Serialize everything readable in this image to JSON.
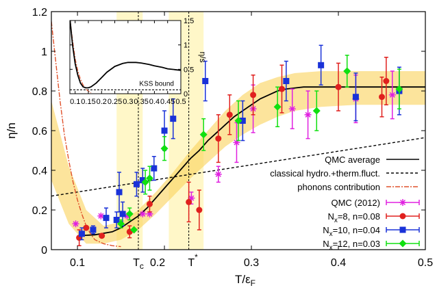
{
  "chart_data": {
    "type": "scatter",
    "title": "",
    "xlabel_main": "T/ε",
    "xlabel_sub": "F",
    "ylabel": "η/n",
    "xlim": [
      0.07,
      0.5
    ],
    "ylim": [
      0,
      1.2
    ],
    "xticks": [
      0.1,
      0.2,
      0.3,
      0.4,
      0.5
    ],
    "yticks": [
      0,
      0.2,
      0.4,
      0.6,
      0.8,
      1,
      1.2
    ],
    "yticklabels": [
      "0",
      "0.2",
      "0.4",
      "0.6",
      "0.8",
      "1",
      "1.2"
    ],
    "xtick_labels": [
      "0.1",
      "0.2",
      "0.3",
      "0.4",
      "0.5"
    ],
    "vertical_markers": [
      {
        "x": 0.17,
        "main": "T",
        "sub": "c",
        "sup": ""
      },
      {
        "x": 0.228,
        "main": "T",
        "sub": "",
        "sup": "*"
      }
    ],
    "shaded_regions": [
      {
        "x0": 0.145,
        "x1": 0.175
      },
      {
        "x0": 0.205,
        "x1": 0.245
      }
    ],
    "band": {
      "x": [
        0.07,
        0.09,
        0.11,
        0.13,
        0.15,
        0.17,
        0.19,
        0.21,
        0.23,
        0.25,
        0.27,
        0.29,
        0.31,
        0.33,
        0.35,
        0.38,
        0.42,
        0.46,
        0.5
      ],
      "lower": [
        0.35,
        0.13,
        0.03,
        0.03,
        0.05,
        0.1,
        0.18,
        0.27,
        0.36,
        0.44,
        0.52,
        0.58,
        0.63,
        0.67,
        0.7,
        0.72,
        0.73,
        0.73,
        0.73
      ],
      "upper": [
        0.75,
        0.42,
        0.2,
        0.12,
        0.14,
        0.2,
        0.29,
        0.39,
        0.5,
        0.6,
        0.7,
        0.78,
        0.84,
        0.87,
        0.89,
        0.9,
        0.9,
        0.9,
        0.9
      ]
    },
    "series": [
      {
        "name": "QMC average",
        "kind": "line",
        "color": "#000000",
        "dash": "",
        "x": [
          0.1,
          0.12,
          0.14,
          0.15,
          0.16,
          0.17,
          0.18,
          0.19,
          0.2,
          0.21,
          0.22,
          0.23,
          0.24,
          0.25,
          0.26,
          0.27,
          0.28,
          0.29,
          0.3,
          0.31,
          0.32,
          0.33,
          0.34,
          0.35,
          0.36,
          0.38,
          0.42,
          0.46,
          0.5
        ],
        "y": [
          0.07,
          0.075,
          0.09,
          0.11,
          0.14,
          0.17,
          0.21,
          0.26,
          0.31,
          0.36,
          0.41,
          0.46,
          0.5,
          0.55,
          0.59,
          0.63,
          0.67,
          0.7,
          0.73,
          0.76,
          0.78,
          0.8,
          0.81,
          0.815,
          0.82,
          0.82,
          0.82,
          0.82,
          0.82
        ]
      },
      {
        "name": "classical hydro.+therm.fluct.",
        "kind": "line",
        "color": "#000000",
        "dash": "4,3",
        "x": [
          0.07,
          0.5
        ],
        "y": [
          0.27,
          0.565
        ]
      },
      {
        "name": "phonons contribution",
        "kind": "line",
        "color": "#e0502a",
        "dash": "7,2,2,2",
        "x": [
          0.07,
          0.075,
          0.08,
          0.085,
          0.09,
          0.095,
          0.1,
          0.105,
          0.11,
          0.115,
          0.12,
          0.13,
          0.14,
          0.15
        ],
        "y": [
          1.15,
          0.95,
          0.75,
          0.58,
          0.45,
          0.34,
          0.25,
          0.18,
          0.12,
          0.08,
          0.05,
          0.03,
          0.02,
          0.015
        ]
      },
      {
        "name": "QMC (2012)",
        "kind": "points",
        "marker": "star",
        "color": "#e020e0",
        "x": [
          0.098,
          0.127,
          0.157,
          0.175,
          0.183,
          0.231,
          0.262,
          0.283,
          0.302,
          0.347,
          0.365,
          0.42,
          0.462
        ],
        "y": [
          0.13,
          0.17,
          0.17,
          0.18,
          0.18,
          0.26,
          0.38,
          0.54,
          0.71,
          0.71,
          0.68,
          0.76,
          0.78
        ],
        "err": [
          0.0,
          0.0,
          0.0,
          0.0,
          0.0,
          0.03,
          0.04,
          0.1,
          0.12,
          0.1,
          0.12,
          0.12,
          0.12
        ]
      },
      {
        "name": "N=8,   n=0.08",
        "label_main": "N",
        "label_sub": "x",
        "label_rest": "=8,   n=0.08",
        "kind": "points",
        "marker": "circle",
        "color": "#e0201e",
        "x": [
          0.102,
          0.11,
          0.128,
          0.16,
          0.183,
          0.228,
          0.24,
          0.262,
          0.275,
          0.302,
          0.335,
          0.4,
          0.45,
          0.455
        ],
        "y": [
          0.06,
          0.11,
          0.07,
          0.09,
          0.23,
          0.24,
          0.2,
          0.56,
          0.68,
          0.78,
          0.81,
          0.82,
          0.77,
          0.85
        ],
        "err": [
          0.04,
          0.0,
          0.0,
          0.03,
          0.04,
          0.1,
          0.1,
          0.12,
          0.1,
          0.1,
          0.12,
          0.12,
          0.1,
          0.12
        ]
      },
      {
        "name": "N=10, n=0.04",
        "label_main": "N",
        "label_sub": "x",
        "label_rest": "=10, n=0.04",
        "kind": "points",
        "marker": "square",
        "color": "#1a32d8",
        "x": [
          0.105,
          0.118,
          0.133,
          0.145,
          0.148,
          0.152,
          0.168,
          0.175,
          0.188,
          0.2,
          0.21,
          0.247,
          0.29,
          0.34,
          0.38,
          0.42,
          0.47
        ],
        "y": [
          0.08,
          0.1,
          0.16,
          0.15,
          0.29,
          0.18,
          0.33,
          0.35,
          0.41,
          0.6,
          0.66,
          0.85,
          0.65,
          0.85,
          0.93,
          0.77,
          0.8
        ],
        "err": [
          0.03,
          0.02,
          0.05,
          0.04,
          0.1,
          0.06,
          0.06,
          0.06,
          0.06,
          0.1,
          0.1,
          0.1,
          0.1,
          0.1,
          0.1,
          0.12,
          0.12
        ]
      },
      {
        "name": "N=12, n=0.03",
        "label_main": "N",
        "label_sub": "x",
        "label_rest": "=12, n=0.03",
        "kind": "points",
        "marker": "diamond",
        "color": "#10e010",
        "x": [
          0.15,
          0.16,
          0.165,
          0.178,
          0.183,
          0.2,
          0.245,
          0.285,
          0.33,
          0.375,
          0.41,
          0.47
        ],
        "y": [
          0.13,
          0.18,
          0.1,
          0.34,
          0.36,
          0.51,
          0.58,
          0.65,
          0.72,
          0.7,
          0.9,
          0.81
        ],
        "err": [
          0.02,
          0.03,
          0.0,
          0.06,
          0.06,
          0.06,
          0.08,
          0.1,
          0.1,
          0.1,
          0.08,
          0.1
        ]
      }
    ],
    "inset": {
      "type": "line",
      "xlim": [
        0.08,
        0.5
      ],
      "ylim": [
        0,
        1.5
      ],
      "xticks": [
        0.1,
        0.15,
        0.2,
        0.25,
        0.3,
        0.35,
        0.4,
        0.45,
        0.5
      ],
      "xtick_labels": [
        "0.1",
        "0.15",
        "0.2",
        "0.25",
        "0.3",
        "0.35",
        "0.4",
        "0.45",
        "0.5"
      ],
      "yticks": [
        0,
        0.5,
        1,
        1.5
      ],
      "ytick_labels": [
        "0",
        "0.5",
        "1",
        "1.5"
      ],
      "ylabel": "η/s",
      "kss_label": "KSS bound",
      "kss_value": 0.08,
      "curve_x": [
        0.08,
        0.09,
        0.1,
        0.11,
        0.12,
        0.13,
        0.14,
        0.15,
        0.16,
        0.18,
        0.2,
        0.22,
        0.25,
        0.28,
        0.3,
        0.33,
        0.35,
        0.38,
        0.4,
        0.43,
        0.45,
        0.5
      ],
      "curve_y": [
        1.55,
        1.0,
        0.62,
        0.38,
        0.22,
        0.14,
        0.12,
        0.12,
        0.14,
        0.22,
        0.33,
        0.44,
        0.56,
        0.62,
        0.64,
        0.64,
        0.63,
        0.6,
        0.57,
        0.54,
        0.51,
        0.48
      ],
      "phonon_x": [
        0.08,
        0.09,
        0.1,
        0.11,
        0.12,
        0.13,
        0.14,
        0.15,
        0.16
      ],
      "phonon_y": [
        1.55,
        1.1,
        0.72,
        0.47,
        0.3,
        0.18,
        0.1,
        0.05,
        0.02
      ]
    }
  }
}
